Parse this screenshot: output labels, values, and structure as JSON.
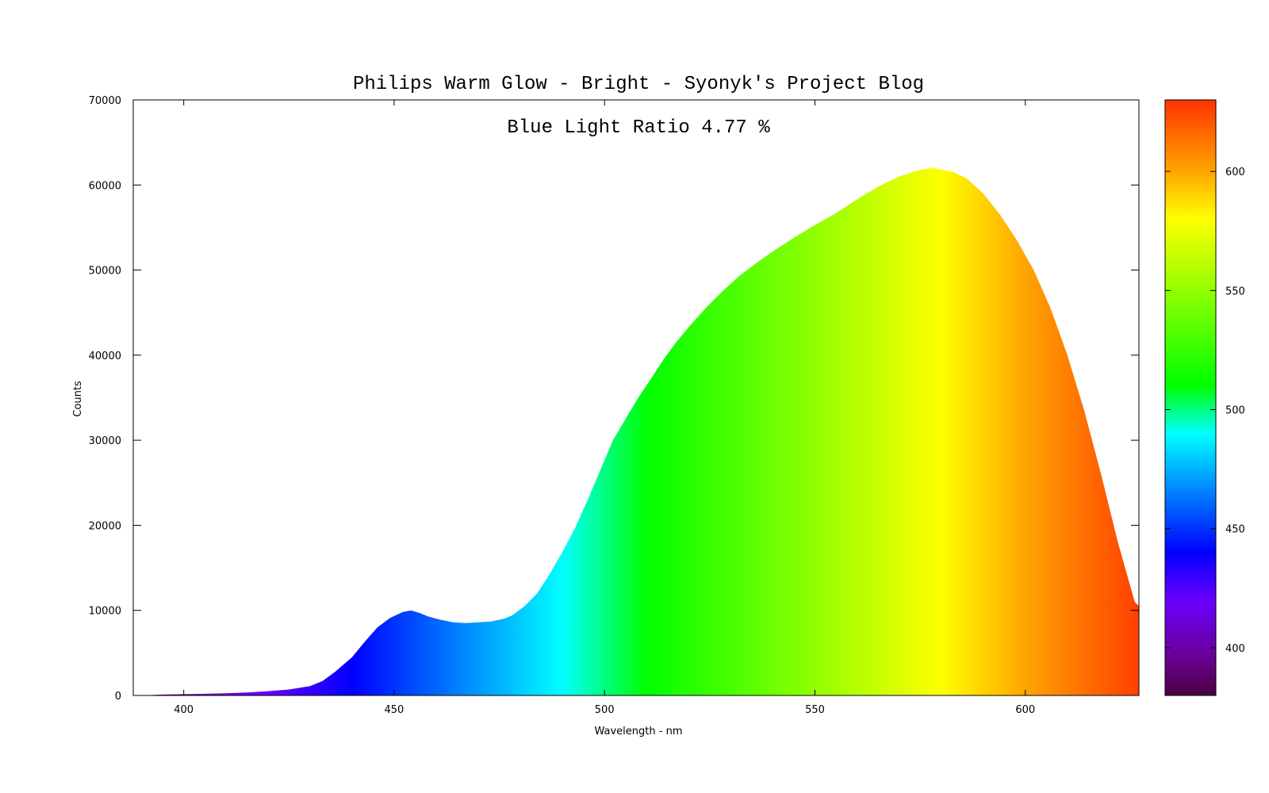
{
  "chart_data": {
    "type": "area",
    "title": "Philips Warm Glow - Bright - Syonyk's Project Blog",
    "annotation": "Blue Light Ratio 4.77 %",
    "xlabel": "Wavelength - nm",
    "ylabel": "Counts",
    "xlim": [
      388,
      627
    ],
    "ylim": [
      0,
      70000
    ],
    "x_ticks": [
      400,
      450,
      500,
      550,
      600
    ],
    "y_ticks": [
      0,
      10000,
      20000,
      30000,
      40000,
      50000,
      60000,
      70000
    ],
    "grid": false,
    "fill": "wavelength-colored spectrum",
    "colorbar": {
      "range": [
        380,
        630
      ],
      "ticks": [
        400,
        450,
        500,
        550,
        600
      ],
      "stops": [
        {
          "wl": 380,
          "color": "#4a0040"
        },
        {
          "wl": 395,
          "color": "#6a0090"
        },
        {
          "wl": 420,
          "color": "#6a00ff"
        },
        {
          "wl": 440,
          "color": "#0000ff"
        },
        {
          "wl": 460,
          "color": "#0066ff"
        },
        {
          "wl": 490,
          "color": "#00ffff"
        },
        {
          "wl": 510,
          "color": "#00ff00"
        },
        {
          "wl": 580,
          "color": "#ffff00"
        },
        {
          "wl": 600,
          "color": "#ffa500"
        },
        {
          "wl": 630,
          "color": "#ff3300"
        }
      ]
    },
    "series": [
      {
        "x": [
          390,
          395,
          400,
          405,
          410,
          415,
          420,
          425,
          430,
          433,
          436,
          440,
          443,
          446,
          449,
          452,
          454,
          456,
          458,
          461,
          464,
          467,
          470,
          473,
          476,
          478,
          481,
          484,
          487,
          490,
          493,
          496,
          499,
          502,
          505,
          508,
          511,
          514,
          517,
          520,
          524,
          528,
          532,
          536,
          540,
          545,
          550,
          555,
          560,
          565,
          570,
          575,
          578,
          580,
          583,
          586,
          590,
          594,
          598,
          602,
          606,
          610,
          614,
          618,
          622,
          626,
          627
        ],
        "y": [
          0,
          100,
          150,
          200,
          250,
          350,
          500,
          700,
          1100,
          1700,
          2800,
          4500,
          6300,
          8000,
          9100,
          9800,
          10000,
          9700,
          9300,
          8900,
          8600,
          8500,
          8600,
          8700,
          9000,
          9400,
          10500,
          12000,
          14300,
          16900,
          19700,
          23000,
          26500,
          30000,
          32500,
          35000,
          37200,
          39500,
          41500,
          43300,
          45500,
          47500,
          49300,
          50800,
          52200,
          53800,
          55300,
          56700,
          58300,
          59800,
          61000,
          61800,
          62000,
          61800,
          61500,
          60800,
          59000,
          56500,
          53500,
          50000,
          45500,
          40000,
          33500,
          26000,
          18000,
          11000,
          10500
        ]
      }
    ]
  }
}
